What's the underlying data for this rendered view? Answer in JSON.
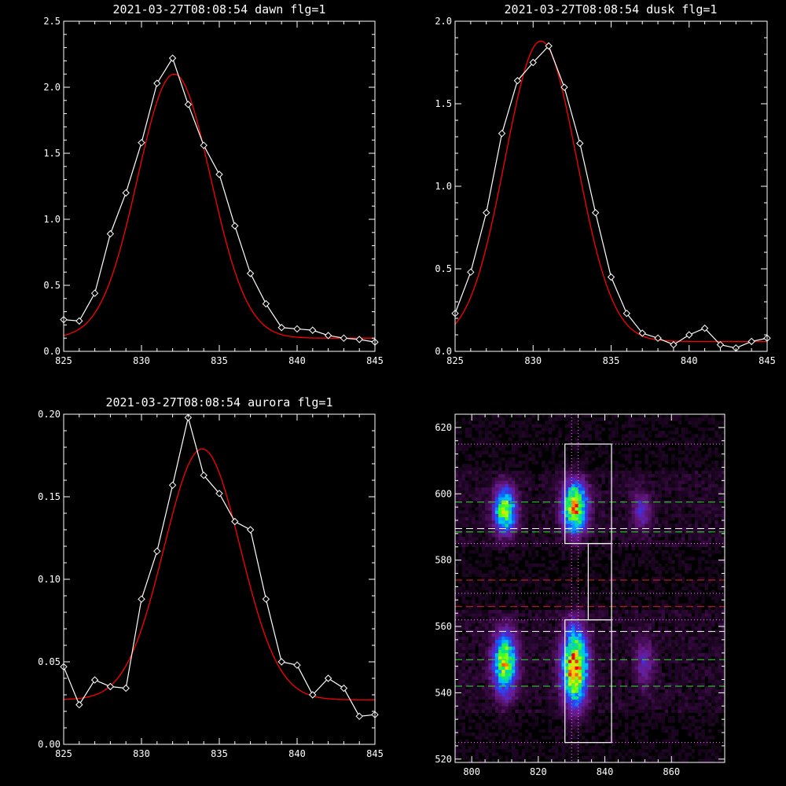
{
  "chart_data": [
    {
      "type": "line",
      "title": "2021-03-27T08:08:54 dawn flg=1",
      "xlim": [
        825,
        845
      ],
      "ylim": [
        0.0,
        2.5
      ],
      "xticks": [
        "825",
        "830",
        "835",
        "840",
        "845"
      ],
      "yticks": [
        "0.0",
        "0.5",
        "1.0",
        "1.5",
        "2.0",
        "2.5"
      ],
      "series": [
        {
          "color": "#ffffff",
          "marker": "diamond",
          "x": [
            825,
            826,
            827,
            828,
            829,
            830,
            831,
            832,
            833,
            834,
            835,
            836,
            837,
            838,
            839,
            840,
            841,
            842,
            843,
            844,
            845
          ],
          "y": [
            0.24,
            0.23,
            0.44,
            0.89,
            1.2,
            1.58,
            2.03,
            2.22,
            1.87,
            1.56,
            1.34,
            0.95,
            0.59,
            0.36,
            0.18,
            0.17,
            0.16,
            0.12,
            0.1,
            0.09,
            0.07
          ]
        },
        {
          "color": "#ff0000",
          "fit": {
            "peak": 2.0,
            "center": 832.1,
            "sigma": 2.35,
            "baseline": 0.1
          }
        }
      ]
    },
    {
      "type": "line",
      "title": "2021-03-27T08:08:54 dusk flg=1",
      "xlim": [
        825,
        845
      ],
      "ylim": [
        0.0,
        2.0
      ],
      "xticks": [
        "825",
        "830",
        "835",
        "840",
        "845"
      ],
      "yticks": [
        "0.0",
        "0.5",
        "1.0",
        "1.5",
        "2.0"
      ],
      "series": [
        {
          "color": "#ffffff",
          "marker": "diamond",
          "x": [
            825,
            826,
            827,
            828,
            829,
            830,
            831,
            832,
            833,
            834,
            835,
            836,
            837,
            838,
            839,
            840,
            841,
            842,
            843,
            844,
            845
          ],
          "y": [
            0.23,
            0.48,
            0.84,
            1.32,
            1.64,
            1.75,
            1.85,
            1.6,
            1.26,
            0.84,
            0.45,
            0.23,
            0.11,
            0.08,
            0.04,
            0.1,
            0.14,
            0.04,
            0.02,
            0.06,
            0.08
          ]
        },
        {
          "color": "#ff0000",
          "fit": {
            "peak": 1.82,
            "center": 830.5,
            "sigma": 2.3,
            "baseline": 0.06
          }
        }
      ]
    },
    {
      "type": "line",
      "title": "2021-03-27T08:08:54 aurora flg=1",
      "xlim": [
        825,
        845
      ],
      "ylim": [
        0.0,
        0.2
      ],
      "xticks": [
        "825",
        "830",
        "835",
        "840",
        "845"
      ],
      "yticks": [
        "0.00",
        "0.05",
        "0.10",
        "0.15",
        "0.20"
      ],
      "series": [
        {
          "color": "#ffffff",
          "marker": "diamond",
          "x": [
            825,
            826,
            827,
            828,
            829,
            830,
            831,
            832,
            833,
            834,
            835,
            836,
            837,
            838,
            839,
            840,
            841,
            842,
            843,
            844,
            845
          ],
          "y": [
            0.047,
            0.024,
            0.039,
            0.035,
            0.034,
            0.088,
            0.117,
            0.157,
            0.198,
            0.163,
            0.152,
            0.135,
            0.13,
            0.088,
            0.05,
            0.048,
            0.03,
            0.04,
            0.034,
            0.017,
            0.018
          ]
        },
        {
          "color": "#ff0000",
          "fit": {
            "peak": 0.152,
            "center": 833.9,
            "sigma": 2.45,
            "baseline": 0.027
          }
        }
      ]
    },
    {
      "type": "heatmap",
      "xlim": [
        795,
        876
      ],
      "ylim": [
        519,
        624
      ],
      "xticks": [
        "800",
        "820",
        "840",
        "860"
      ],
      "yticks": [
        "520",
        "540",
        "560",
        "580",
        "600",
        "620"
      ],
      "colormap": [
        "#000000",
        "#3a0a45",
        "#6a1a8a",
        "#4a2ad0",
        "#1060ff",
        "#00c0ff",
        "#00e090",
        "#40ff20",
        "#c0ff00",
        "#ffd000",
        "#ff0000"
      ],
      "blobs": [
        {
          "x": 810,
          "y": 595,
          "sx": 2.2,
          "sy": 4.5,
          "amp": 0.72
        },
        {
          "x": 831,
          "y": 596,
          "sx": 2.4,
          "sy": 5.0,
          "amp": 0.88
        },
        {
          "x": 851,
          "y": 595,
          "sx": 2.0,
          "sy": 4.0,
          "amp": 0.22
        },
        {
          "x": 810,
          "y": 549,
          "sx": 2.3,
          "sy": 6.0,
          "amp": 0.78
        },
        {
          "x": 831,
          "y": 548,
          "sx": 2.5,
          "sy": 7.5,
          "amp": 0.95
        },
        {
          "x": 852,
          "y": 549,
          "sx": 2.0,
          "sy": 5.0,
          "amp": 0.22
        }
      ],
      "boxes": [
        {
          "x0": 828,
          "x1": 842,
          "y0": 585,
          "y1": 615,
          "color": "#ffffff"
        },
        {
          "x0": 835,
          "x1": 842,
          "y0": 562,
          "y1": 585,
          "color": "#ffffff"
        },
        {
          "x0": 828,
          "x1": 842,
          "y0": 525,
          "y1": 562,
          "color": "#ffffff"
        }
      ],
      "hlines": [
        {
          "y": 615,
          "color": "#ff80ff",
          "style": "dotted"
        },
        {
          "y": 597.5,
          "color": "#33dd33",
          "style": "dashed"
        },
        {
          "y": 589.5,
          "color": "#ffffff",
          "style": "dashed"
        },
        {
          "y": 588.5,
          "color": "#33dd33",
          "style": "dashed"
        },
        {
          "y": 585,
          "color": "#ff80ff",
          "style": "dotted"
        },
        {
          "y": 574,
          "color": "#dd2222",
          "style": "dashed"
        },
        {
          "y": 570,
          "color": "#ff80ff",
          "style": "dotted"
        },
        {
          "y": 566,
          "color": "#dd2222",
          "style": "dashed"
        },
        {
          "y": 562,
          "color": "#ff80ff",
          "style": "dotted"
        },
        {
          "y": 558.5,
          "color": "#ffffff",
          "style": "dashed"
        },
        {
          "y": 550,
          "color": "#33dd33",
          "style": "dashed"
        },
        {
          "y": 542,
          "color": "#33dd33",
          "style": "dashed"
        },
        {
          "y": 525,
          "color": "#ff80ff",
          "style": "dotted"
        }
      ],
      "vlines": [
        {
          "x": 830,
          "color": "#ff80ff",
          "style": "dotted"
        },
        {
          "x": 832,
          "color": "#ff80ff",
          "style": "dotted"
        }
      ]
    }
  ]
}
